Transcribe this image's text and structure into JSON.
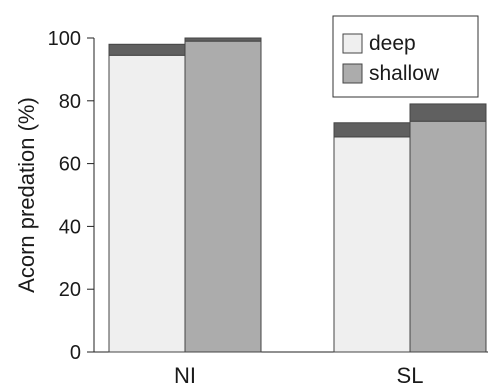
{
  "chart_data": {
    "type": "bar",
    "stacked_cap": true,
    "categories": [
      "NI",
      "SL"
    ],
    "series": [
      {
        "name": "deep",
        "values": [
          94.5,
          68.5
        ],
        "cap": [
          3.5,
          4.5
        ],
        "color": "#efefef"
      },
      {
        "name": "shallow",
        "values": [
          99.0,
          73.5
        ],
        "cap": [
          1.0,
          5.5
        ],
        "color": "#acacac"
      }
    ],
    "cap_color": "#606060",
    "ylabel": "Acorn predation (%)",
    "xlabel": "",
    "title": "",
    "ylim": [
      0,
      100
    ],
    "yticks": [
      0,
      20,
      40,
      60,
      80,
      100
    ],
    "grid": false,
    "legend_position": "top-right"
  }
}
